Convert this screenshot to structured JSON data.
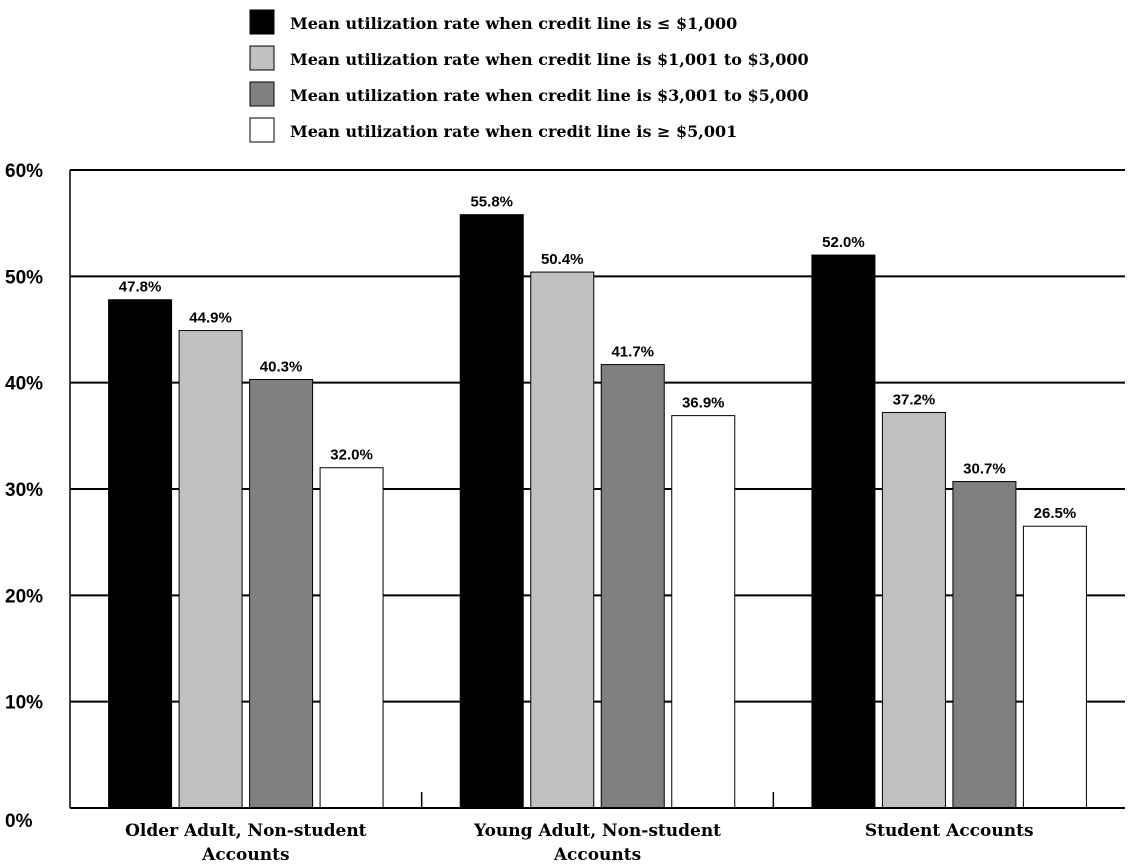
{
  "chart_data": {
    "type": "bar",
    "title": "",
    "xlabel": "",
    "ylabel": "",
    "ylim": [
      0,
      60
    ],
    "y_ticks": [
      "0%",
      "10%",
      "20%",
      "30%",
      "40%",
      "50%",
      "60%"
    ],
    "grid": true,
    "legend_position": "top-center",
    "categories": [
      [
        "Older Adult, Non-student",
        "Accounts"
      ],
      [
        "Young Adult, Non-student",
        "Accounts"
      ],
      [
        "Student Accounts"
      ]
    ],
    "series": [
      {
        "name": "Mean utilization rate when credit line is ≤ $1,000",
        "color": "#000000",
        "values": [
          47.8,
          55.8,
          52.0
        ],
        "labels": [
          "47.8%",
          "55.8%",
          "52.0%"
        ]
      },
      {
        "name": "Mean utilization rate when credit line is $1,001 to $3,000",
        "color": "#c0c0c0",
        "values": [
          44.9,
          50.4,
          37.2
        ],
        "labels": [
          "44.9%",
          "50.4%",
          "37.2%"
        ]
      },
      {
        "name": "Mean utilization rate when credit line is $3,001 to $5,000",
        "color": "#808080",
        "values": [
          40.3,
          41.7,
          30.7
        ],
        "labels": [
          "40.3%",
          "41.7%",
          "30.7%"
        ]
      },
      {
        "name": "Mean utilization rate when credit line is ≥ $5,001",
        "color": "#ffffff",
        "values": [
          32.0,
          36.9,
          26.5
        ],
        "labels": [
          "32.0%",
          "36.9%",
          "26.5%"
        ]
      }
    ]
  }
}
